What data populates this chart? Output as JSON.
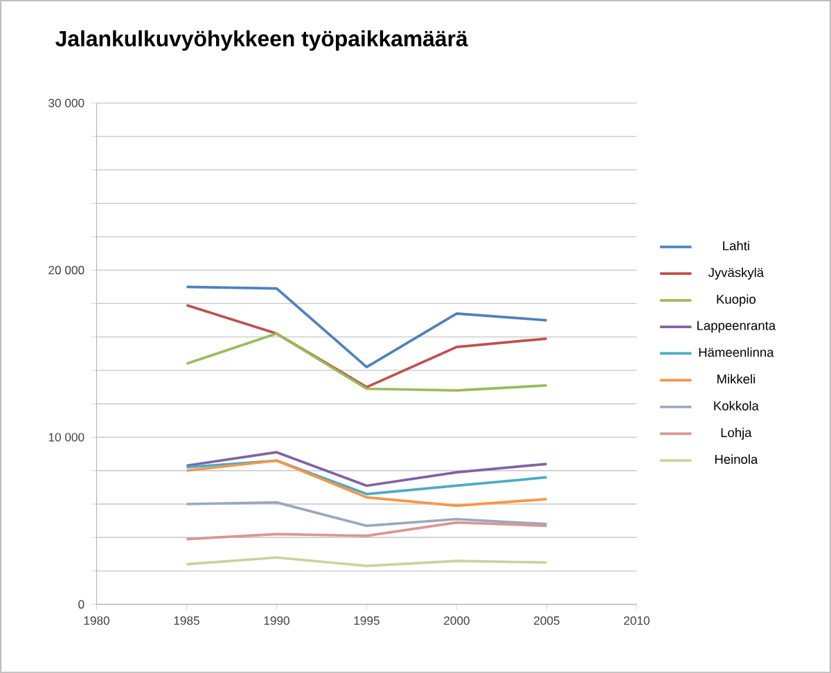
{
  "chart_data": {
    "type": "line",
    "title": "Jalankulkuvyöhykkeen työpaikkamäärä",
    "x": [
      1985,
      1990,
      1995,
      2000,
      2005
    ],
    "xlim": [
      1980,
      2010
    ],
    "xticks": [
      1980,
      1985,
      1990,
      1995,
      2000,
      2005,
      2010
    ],
    "ylim": [
      0,
      30000
    ],
    "yticks": [
      {
        "value": 0,
        "label": "0"
      },
      {
        "value": 2000,
        "label": null
      },
      {
        "value": 4000,
        "label": null
      },
      {
        "value": 6000,
        "label": null
      },
      {
        "value": 8000,
        "label": null
      },
      {
        "value": 10000,
        "label": "10 000"
      },
      {
        "value": 12000,
        "label": null
      },
      {
        "value": 14000,
        "label": null
      },
      {
        "value": 16000,
        "label": null
      },
      {
        "value": 18000,
        "label": null
      },
      {
        "value": 20000,
        "label": "20 000"
      },
      {
        "value": 22000,
        "label": null
      },
      {
        "value": 24000,
        "label": null
      },
      {
        "value": 26000,
        "label": null
      },
      {
        "value": 28000,
        "label": null
      },
      {
        "value": 30000,
        "label": "30 000"
      }
    ],
    "grid": "y",
    "legend": "right",
    "marker": "none",
    "line_style": "solid",
    "series": [
      {
        "name": "Lahti",
        "color": "#4f81bd",
        "values": [
          19000,
          18900,
          14200,
          17400,
          17000
        ]
      },
      {
        "name": "Jyväskylä",
        "color": "#c0504d",
        "values": [
          17900,
          16200,
          13000,
          15400,
          15900
        ]
      },
      {
        "name": "Kuopio",
        "color": "#9bbb59",
        "values": [
          14400,
          16200,
          12900,
          12800,
          13100
        ]
      },
      {
        "name": "Lappeenranta",
        "color": "#8064a2",
        "values": [
          8300,
          9100,
          7100,
          7900,
          8400
        ]
      },
      {
        "name": "Hämeenlinna",
        "color": "#4bacc6",
        "values": [
          8200,
          8600,
          6600,
          7100,
          7600
        ]
      },
      {
        "name": "Mikkeli",
        "color": "#f79646",
        "values": [
          8000,
          8600,
          6400,
          5900,
          6300
        ]
      },
      {
        "name": "Kokkola",
        "color": "#9ba8bc",
        "values": [
          6000,
          6100,
          4700,
          5100,
          4800
        ]
      },
      {
        "name": "Lohja",
        "color": "#d99694",
        "values": [
          3900,
          4200,
          4100,
          4900,
          4700
        ]
      },
      {
        "name": "Heinola",
        "color": "#c3d69b",
        "values": [
          2400,
          2800,
          2300,
          2600,
          2500
        ]
      }
    ]
  }
}
